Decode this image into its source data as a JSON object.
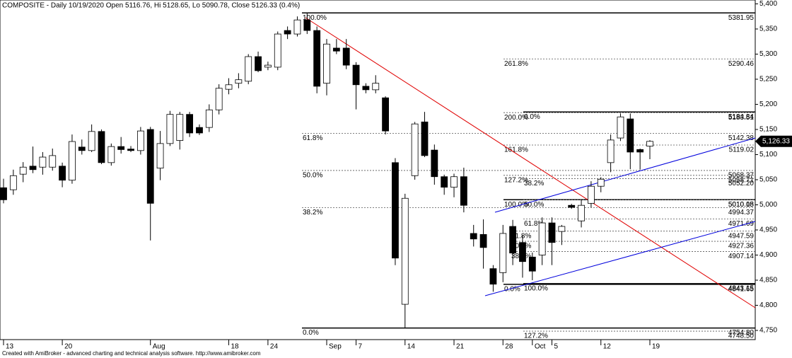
{
  "chart_data": {
    "type": "candlestick",
    "title": "COMPOSITE - Daily 10/19/2020 Open 5116.76, Hi 5128.65, Lo 5090.78, Close 5126.33 (0.4%)",
    "footer": "Created with AmiBroker - advanced charting and technical analysis software. http://www.amibroker.com",
    "categories": [
      "13",
      null,
      null,
      null,
      null,
      null,
      "20",
      null,
      null,
      null,
      null,
      null,
      null,
      null,
      null,
      "Aug",
      null,
      null,
      null,
      null,
      null,
      null,
      null,
      "18",
      null,
      null,
      null,
      "24",
      null,
      null,
      null,
      null,
      null,
      "Sep",
      null,
      null,
      "7",
      null,
      null,
      null,
      null,
      "14",
      null,
      null,
      null,
      null,
      "21",
      null,
      null,
      null,
      null,
      "28",
      null,
      null,
      "Oct",
      null,
      "5",
      null,
      null,
      null,
      null,
      "12",
      null,
      null,
      null,
      null,
      "19"
    ],
    "open": [
      5034,
      5030,
      5061,
      5077,
      5075,
      5075,
      5077,
      5049,
      5115,
      5108,
      5146,
      5084,
      5116,
      5111,
      5108,
      5150,
      5073,
      5122,
      5128,
      5180,
      5154,
      5154,
      5189,
      5230,
      5242,
      5246,
      5295,
      5274,
      5274,
      5347,
      5340,
      5368,
      5347,
      5242,
      5312,
      5312,
      5278,
      5236,
      5229,
      5213,
      5084,
      4802,
      5058,
      5165,
      5109,
      5056,
      5035,
      5056,
      4943,
      4941,
      4873,
      4865,
      4957,
      4925,
      4896,
      4900,
      4964,
      4947,
      4999,
      4968,
      5003,
      5037,
      5084,
      5133,
      5171,
      5110,
      5116.76
    ],
    "high": [
      5052,
      5070,
      5085,
      5116,
      5105,
      5112,
      5084,
      5140,
      5130,
      5160,
      5150,
      5122,
      5135,
      5117,
      5155,
      5155,
      5147,
      5187,
      5185,
      5185,
      5160,
      5200,
      5240,
      5252,
      5262,
      5300,
      5305,
      5285,
      5345,
      5355,
      5375,
      5382,
      5355,
      5330,
      5330,
      5330,
      5284,
      5242,
      5258,
      5216,
      5093,
      5022,
      5165,
      5185,
      5120,
      5060,
      5062,
      5074,
      4960,
      4971,
      4880,
      4960,
      4970,
      4940,
      4905,
      4975,
      4975,
      4960,
      5002,
      5010,
      5047,
      5055,
      5140,
      5182,
      5182,
      5112,
      5128.65
    ],
    "low": [
      5003,
      5020,
      5045,
      5063,
      5060,
      5068,
      5035,
      5042,
      5100,
      5105,
      5081,
      5078,
      5102,
      5105,
      5100,
      4929,
      5049,
      5117,
      5110,
      5135,
      5139,
      5145,
      5180,
      5220,
      5232,
      5240,
      5264,
      5268,
      5268,
      5330,
      5335,
      5340,
      5222,
      5218,
      5300,
      5270,
      5190,
      5222,
      5222,
      5140,
      4880,
      4755,
      5050,
      5095,
      5040,
      5020,
      5015,
      4985,
      4917,
      4873,
      4827,
      4846,
      4880,
      4855,
      4850,
      4880,
      4880,
      4920,
      4992,
      4955,
      4995,
      5025,
      5065,
      5127,
      5071,
      5070,
      5090.78
    ],
    "close": [
      5010,
      5058,
      5075,
      5070,
      5095,
      5098,
      5049,
      5126,
      5108,
      5146,
      5084,
      5116,
      5110,
      5108,
      5147,
      5003,
      5122,
      5180,
      5180,
      5143,
      5143,
      5189,
      5232,
      5239,
      5249,
      5295,
      5267,
      5278,
      5340,
      5340,
      5368,
      5347,
      5236,
      5320,
      5306,
      5278,
      5239,
      5229,
      5242,
      5147,
      4894,
      5013,
      5161,
      5098,
      5056,
      5035,
      5056,
      4999,
      4932,
      4915,
      4842,
      4943,
      4904,
      4887,
      4868,
      4964,
      4925,
      4957,
      4995,
      4999,
      5037,
      5051,
      5129,
      5175,
      5105,
      5105,
      5126.33
    ],
    "up_color": "#ffffff",
    "down_color": "#000000",
    "ylim": [
      4731.7,
      5407.7
    ],
    "yticks": [
      {
        "value": 4750,
        "label": "4,750"
      },
      {
        "value": 4800,
        "label": "4,800"
      },
      {
        "value": 4850,
        "label": "4,850"
      },
      {
        "value": 4900,
        "label": "4,900"
      },
      {
        "value": 4950,
        "label": "4,950"
      },
      {
        "value": 5000,
        "label": "5,000"
      },
      {
        "value": 5050,
        "label": "5,050"
      },
      {
        "value": 5100,
        "label": "5,100"
      },
      {
        "value": 5150,
        "label": "5,150"
      },
      {
        "value": 5200,
        "label": "5,200"
      },
      {
        "value": 5250,
        "label": "5,250"
      },
      {
        "value": 5300,
        "label": "5,300"
      },
      {
        "value": 5350,
        "label": "5,350"
      },
      {
        "value": 5400,
        "label": "5,400"
      }
    ],
    "last_price": {
      "value": 5126.33,
      "label": "5,126.33"
    },
    "fib_sets": [
      {
        "levels": [
          {
            "value": 5381.95,
            "pct": "100.0%",
            "label": "5381.95"
          },
          {
            "value": 5142.38,
            "pct": "61.8%",
            "label": "5142.38"
          },
          {
            "value": 5068.37,
            "pct": "50.0%",
            "label": "5068.37"
          },
          {
            "value": 4994.37,
            "pct": "38.2%",
            "label": "4994.37"
          },
          {
            "value": 4754.8,
            "pct": "0.0%",
            "label": "4754.80"
          }
        ]
      },
      {
        "levels": [
          {
            "value": 5290.46,
            "pct": "261.8%",
            "label": "5290.46"
          },
          {
            "value": 5183.51,
            "pct": "200.0%",
            "label": "5183.51"
          },
          {
            "value": 5119.02,
            "pct": "161.8%",
            "label": "5119.02"
          },
          {
            "value": 5058.71,
            "pct": "127.2%",
            "label": "5058.71"
          },
          {
            "value": 5010.15,
            "pct": "100.0%",
            "label": "5010.15"
          },
          {
            "value": 4841.65,
            "pct": "0.0%",
            "label": "4841.65"
          }
        ]
      },
      {
        "levels": [
          {
            "value": 5184.84,
            "pct": "0.0%",
            "label": "5184.84"
          },
          {
            "value": 5052.2,
            "pct": "38.2%",
            "label": "5052.20"
          },
          {
            "value": 5010.08,
            "pct": "50.0%",
            "label": "5010.08"
          },
          {
            "value": 4971.69,
            "pct": "61.8%",
            "label": "4971.69"
          },
          {
            "value": 4843.15,
            "pct": "100.0%",
            "label": "4843.15"
          },
          {
            "value": 4748.5,
            "pct": "127.2%",
            "label": "4748.50"
          }
        ]
      },
      {
        "levels": [
          {
            "value": 4947.59,
            "pct": "61.8%",
            "label": "4947.59"
          },
          {
            "value": 4927.36,
            "pct": "50.0%",
            "label": "4927.36"
          },
          {
            "value": 4907.14,
            "pct": "38.2%",
            "label": "4907.14"
          }
        ]
      }
    ]
  }
}
